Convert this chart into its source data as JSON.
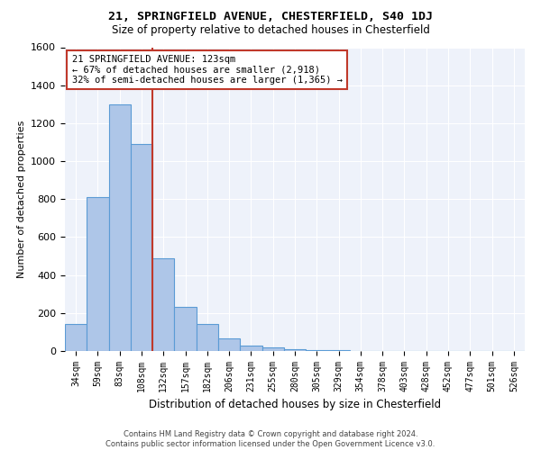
{
  "title1": "21, SPRINGFIELD AVENUE, CHESTERFIELD, S40 1DJ",
  "title2": "Size of property relative to detached houses in Chesterfield",
  "xlabel": "Distribution of detached houses by size in Chesterfield",
  "ylabel": "Number of detached properties",
  "footnote": "Contains HM Land Registry data © Crown copyright and database right 2024.\nContains public sector information licensed under the Open Government Licence v3.0.",
  "bar_labels": [
    "34sqm",
    "59sqm",
    "83sqm",
    "108sqm",
    "132sqm",
    "157sqm",
    "182sqm",
    "206sqm",
    "231sqm",
    "255sqm",
    "280sqm",
    "305sqm",
    "329sqm",
    "354sqm",
    "378sqm",
    "403sqm",
    "428sqm",
    "452sqm",
    "477sqm",
    "501sqm",
    "526sqm"
  ],
  "bar_values": [
    140,
    810,
    1300,
    1090,
    490,
    230,
    140,
    65,
    30,
    18,
    10,
    5,
    3,
    2,
    1,
    1,
    0,
    0,
    0,
    0,
    0
  ],
  "bar_color": "#aec6e8",
  "bar_edge_color": "#5b9bd5",
  "background_color": "#eef2fa",
  "grid_color": "#ffffff",
  "vline_color": "#c0392b",
  "annotation_text": "21 SPRINGFIELD AVENUE: 123sqm\n← 67% of detached houses are smaller (2,918)\n32% of semi-detached houses are larger (1,365) →",
  "annotation_box_color": "#c0392b",
  "ylim": [
    0,
    1600
  ],
  "yticks": [
    0,
    200,
    400,
    600,
    800,
    1000,
    1200,
    1400,
    1600
  ],
  "vline_pos": 3.5
}
